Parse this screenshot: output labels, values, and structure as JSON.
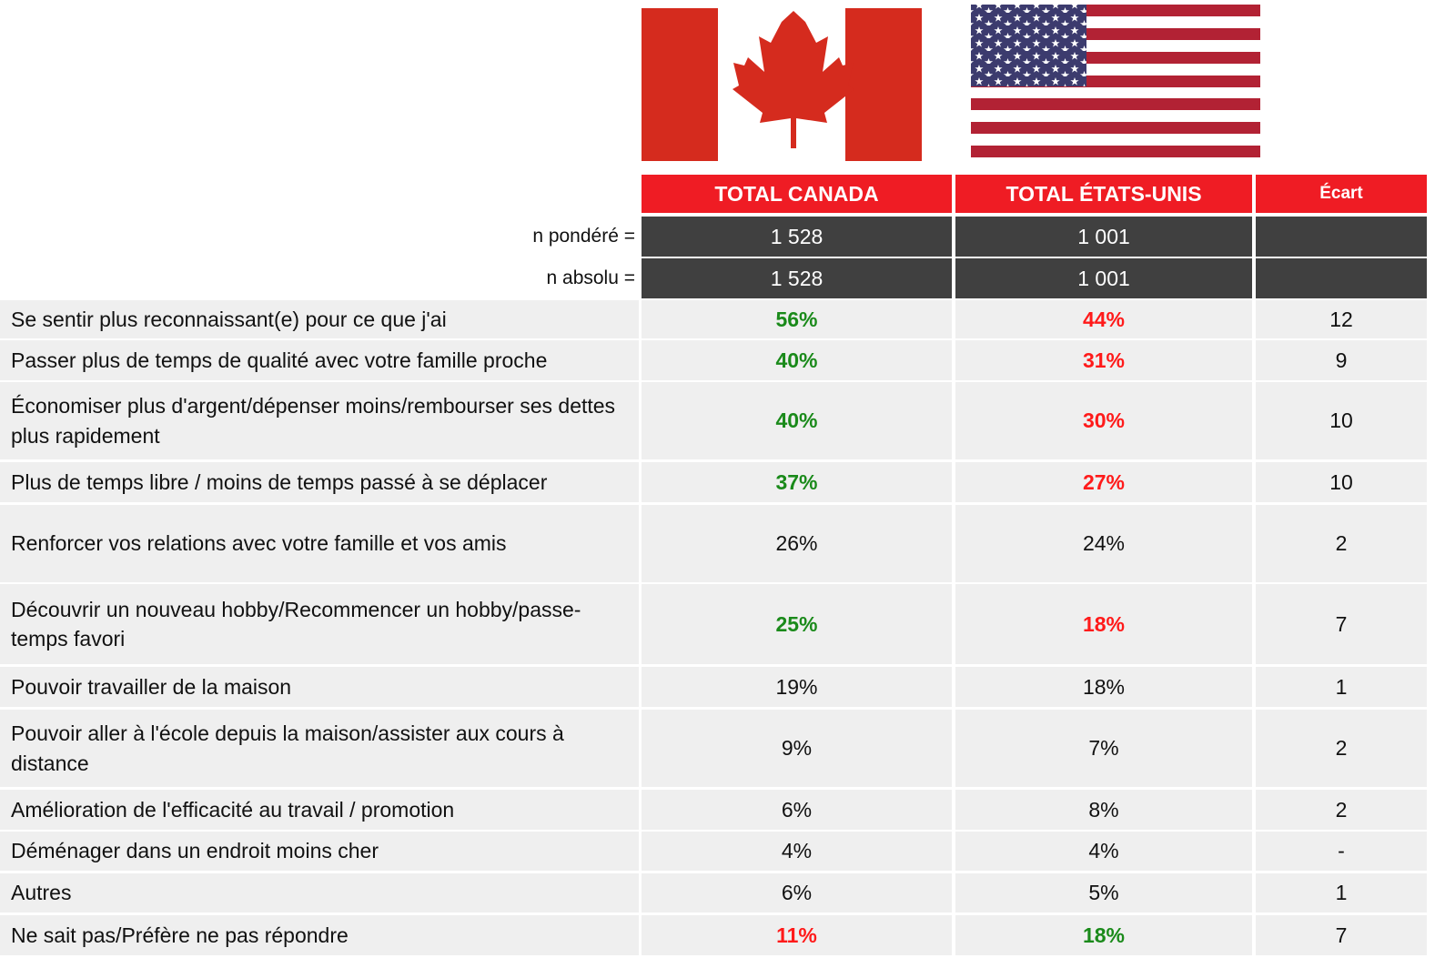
{
  "table": {
    "header": [
      "TOTAL CANADA",
      "TOTAL ÉTATS-UNIS",
      "Écart"
    ],
    "n_rows": [
      {
        "label": "n pondéré =",
        "canada": "1 528",
        "us": "1 001"
      },
      {
        "label": "n absolu =",
        "canada": "1 528",
        "us": "1 001"
      }
    ],
    "rows": [
      {
        "label": "Se sentir plus reconnaissant(e) pour ce que j'ai",
        "canada": "56%",
        "us": "44%",
        "ecart": 12,
        "canada_color": "#1a8a1a",
        "us_color": "#ff1a1a"
      },
      {
        "label": "Passer plus de temps de qualité avec votre famille proche",
        "canada": "40%",
        "us": "31%",
        "ecart": 9,
        "canada_color": "#1a8a1a",
        "us_color": "#ff1a1a"
      },
      {
        "label": "Économiser plus d'argent/dépenser moins/rembourser ses dettes plus rapidement",
        "canada": "40%",
        "us": "30%",
        "ecart": 10,
        "canada_color": "#1a8a1a",
        "us_color": "#ff1a1a"
      },
      {
        "label": "Plus de temps libre / moins de temps passé à se déplacer",
        "canada": "37%",
        "us": "27%",
        "ecart": 10,
        "canada_color": "#1a8a1a",
        "us_color": "#ff1a1a"
      },
      {
        "label": "Renforcer vos relations avec votre famille et vos amis",
        "canada": "26%",
        "us": "24%",
        "ecart": 2
      },
      {
        "label": "Découvrir un nouveau hobby/Recommencer un hobby/passe-temps favori",
        "canada": "25%",
        "us": "18%",
        "ecart": 7,
        "canada_color": "#1a8a1a",
        "us_color": "#ff1a1a"
      },
      {
        "label": "Pouvoir travailler de la maison",
        "canada": "19%",
        "us": "18%",
        "ecart": 1
      },
      {
        "label": "Pouvoir aller à l'école depuis la maison/assister aux cours à distance",
        "canada": "9%",
        "us": "7%",
        "ecart": 2
      },
      {
        "label": "Amélioration de l'efficacité au travail / promotion",
        "canada": "6%",
        "us": "8%",
        "ecart": 2
      },
      {
        "label": "Déménager dans un endroit moins cher",
        "canada": "4%",
        "us": "4%",
        "ecart": "-"
      },
      {
        "label": "Autres",
        "canada": "6%",
        "us": "5%",
        "ecart": 1
      },
      {
        "label": "Ne sait pas/Préfère ne pas répondre",
        "canada": "11%",
        "us": "18%",
        "ecart": 7,
        "canada_color": "#ff1a1a",
        "us_color": "#1a8a1a"
      }
    ]
  }
}
